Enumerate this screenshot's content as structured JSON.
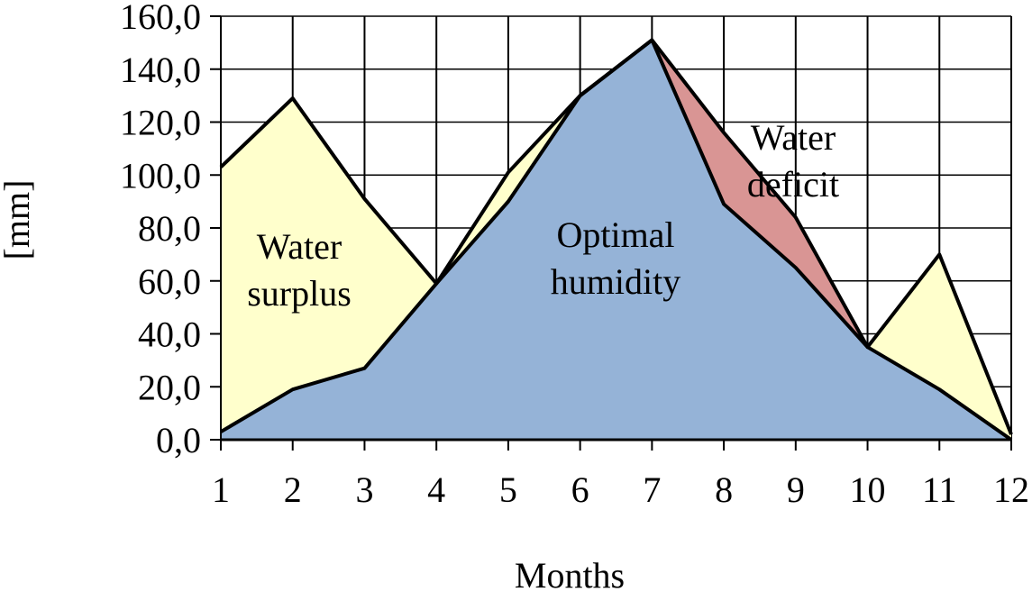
{
  "chart_data": {
    "type": "area",
    "xlabel": "Months",
    "ylabel": "[mm]",
    "x": [
      1,
      2,
      3,
      4,
      5,
      6,
      7,
      8,
      9,
      10,
      11,
      12
    ],
    "x_tick_labels": [
      "1",
      "2",
      "3",
      "4",
      "5",
      "6",
      "7",
      "8",
      "9",
      "10",
      "11",
      "12"
    ],
    "ylim": [
      0,
      160
    ],
    "y_ticks": [
      0,
      20,
      40,
      60,
      80,
      100,
      120,
      140,
      160
    ],
    "y_tick_labels": [
      "0,0",
      "20,0",
      "40,0",
      "60,0",
      "80,0",
      "100,0",
      "120,0",
      "140,0",
      "160,0"
    ],
    "grid": {
      "vertical": true,
      "horizontal": true
    },
    "series": [
      {
        "values": [
          103,
          129,
          91,
          59,
          101,
          130,
          151,
          116,
          84,
          35,
          70,
          2
        ]
      },
      {
        "values": [
          3,
          19,
          27,
          59,
          90,
          130,
          151,
          89,
          65,
          35,
          19,
          0
        ]
      }
    ],
    "regions": [
      {
        "lines": [
          "Water",
          "surplus"
        ],
        "color": "#ffffcc"
      },
      {
        "lines": [
          "Optimal",
          "humidity"
        ],
        "color": "#95b3d7"
      },
      {
        "lines": [
          "Water",
          "deficit"
        ],
        "color": "#d99594"
      }
    ]
  }
}
